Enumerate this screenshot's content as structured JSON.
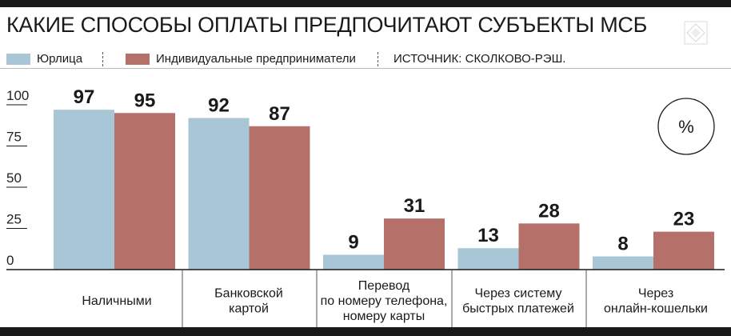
{
  "title": "КАКИЕ СПОСОБЫ ОПЛАТЫ ПРЕДПОЧИТАЮТ СУБЪЕКТЫ МСБ",
  "legend": {
    "items": [
      {
        "label": "Юрлица",
        "color": "#a9c6d6"
      },
      {
        "label": "Индивидуальные предприниматели",
        "color": "#b5706a"
      }
    ],
    "source": "ИСТОЧНИК: СКОЛКОВО-РЭШ."
  },
  "unit_badge": "%",
  "colors": {
    "series1": "#a9c6d6",
    "series2": "#b5706a",
    "axis": "#1a1a1a",
    "divider": "#555555"
  },
  "chart_data": {
    "type": "bar",
    "categories": [
      [
        "Наличными"
      ],
      [
        "Банковской",
        "картой"
      ],
      [
        "Перевод",
        "по номеру телефона,",
        "номеру карты"
      ],
      [
        "Через систему",
        "быстрых платежей"
      ],
      [
        "Через",
        "онлайн-кошельки"
      ]
    ],
    "series": [
      {
        "name": "Юрлица",
        "values": [
          97,
          92,
          9,
          13,
          8
        ]
      },
      {
        "name": "Индивидуальные предприниматели",
        "values": [
          95,
          87,
          31,
          28,
          23
        ]
      }
    ],
    "yticks": [
      0,
      25,
      50,
      75,
      100
    ],
    "ylim": [
      0,
      100
    ],
    "legend_position": "top-left",
    "grid": false
  }
}
